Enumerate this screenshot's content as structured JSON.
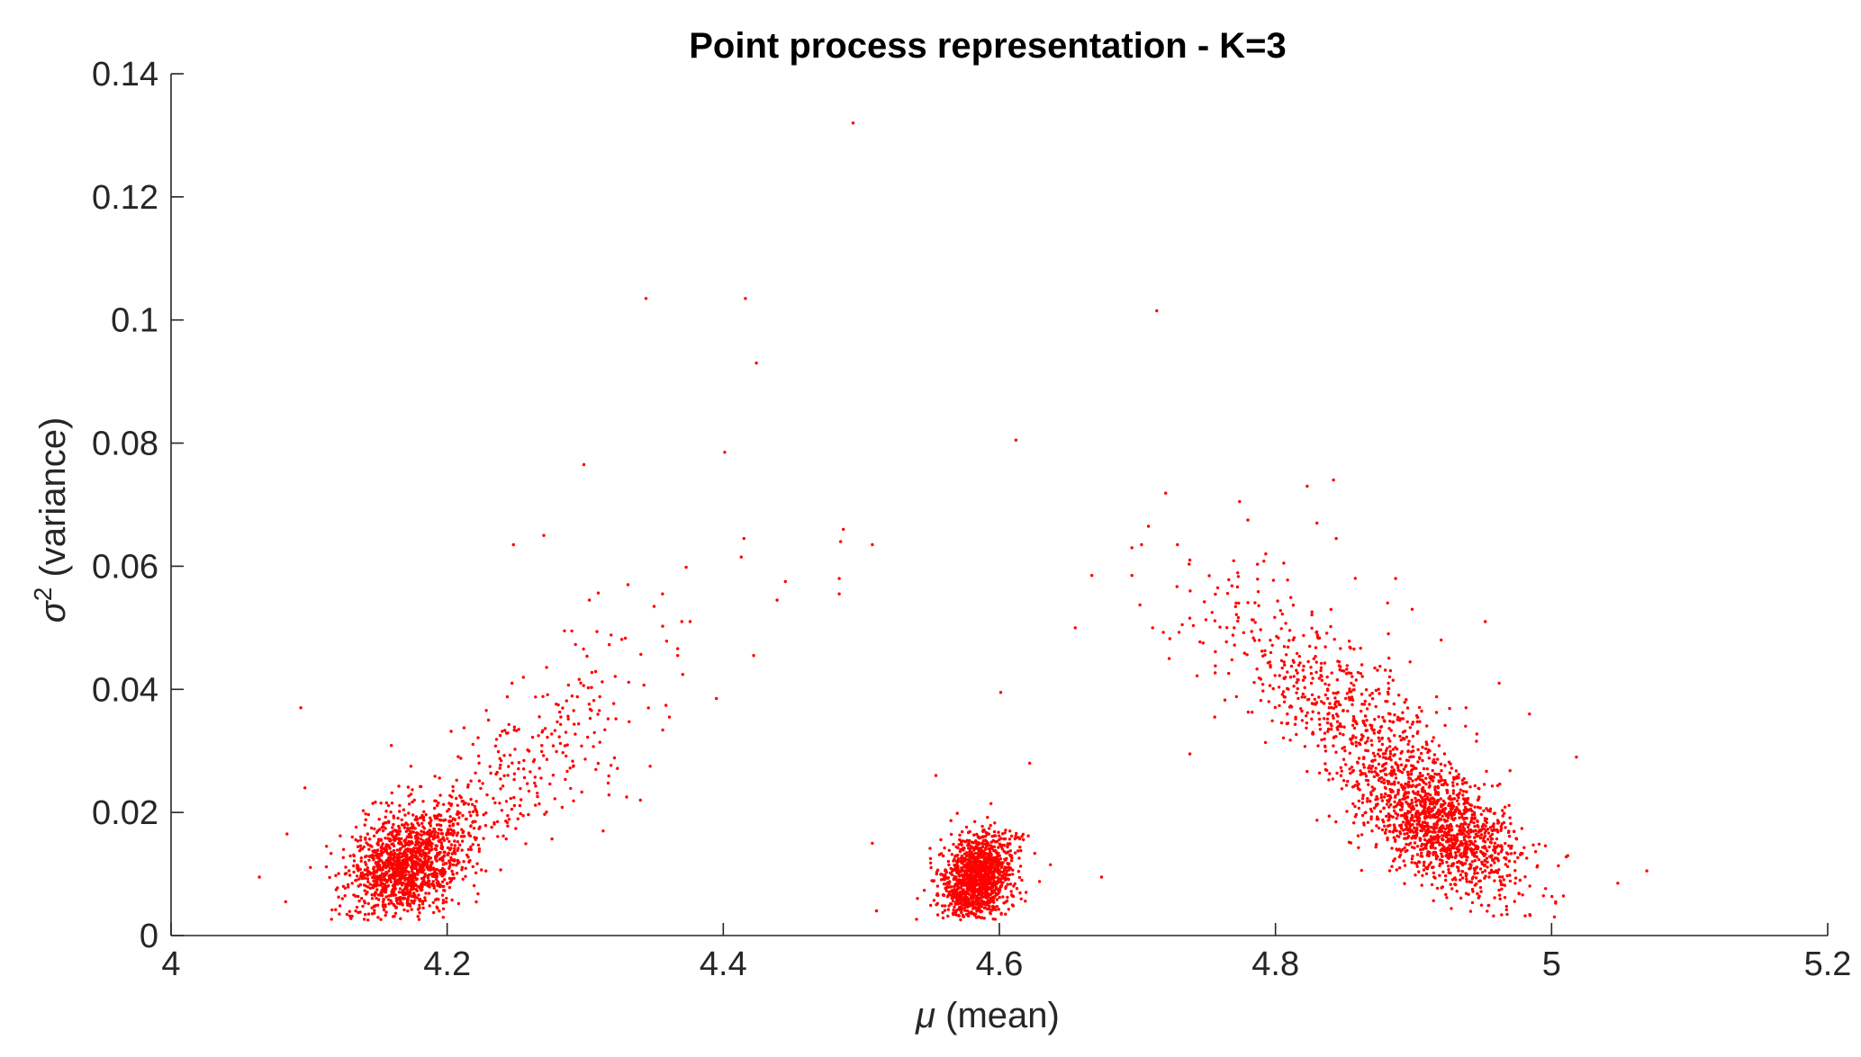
{
  "chart_data": {
    "type": "scatter",
    "title": "Point process representation - K=3",
    "xlabel_symbol": "μ",
    "xlabel_text": " (mean)",
    "ylabel_symbol": "σ",
    "ylabel_sup": "2",
    "ylabel_text": " (variance)",
    "xlim": [
      4,
      5.2
    ],
    "ylim": [
      0,
      0.14
    ],
    "xticks": [
      4,
      4.2,
      4.4,
      4.6,
      4.8,
      5,
      5.2
    ],
    "yticks": [
      0,
      0.02,
      0.04,
      0.06,
      0.08,
      0.1,
      0.12,
      0.14
    ],
    "xtick_labels": [
      "4",
      "4.2",
      "4.4",
      "4.6",
      "4.8",
      "5",
      "5.2"
    ],
    "ytick_labels": [
      "0",
      "0.02",
      "0.04",
      "0.06",
      "0.08",
      "0.1",
      "0.12",
      "0.14"
    ],
    "grid": false,
    "marker_color": "#ff0000",
    "axis_color": "#262626",
    "series": [
      {
        "clusters": [
          {
            "mean_x": 4.17,
            "mean_y": 0.0115,
            "sd_x": 0.022,
            "sd_y": 0.0045,
            "corr": 0.35,
            "n": 1300
          },
          {
            "mean_x": 4.23,
            "mean_y": 0.022,
            "sd_x": 0.045,
            "sd_y": 0.009,
            "corr": 0.75,
            "n": 260
          },
          {
            "mean_x": 4.3,
            "mean_y": 0.036,
            "sd_x": 0.03,
            "sd_y": 0.009,
            "corr": 0.5,
            "n": 80
          },
          {
            "mean_x": 4.585,
            "mean_y": 0.0095,
            "sd_x": 0.013,
            "sd_y": 0.0035,
            "corr": 0.3,
            "n": 1300
          },
          {
            "mean_x": 4.92,
            "mean_y": 0.0175,
            "sd_x": 0.03,
            "sd_y": 0.0055,
            "corr": -0.55,
            "n": 1300
          },
          {
            "mean_x": 4.86,
            "mean_y": 0.034,
            "sd_x": 0.04,
            "sd_y": 0.0085,
            "corr": -0.7,
            "n": 550
          },
          {
            "mean_x": 4.8,
            "mean_y": 0.048,
            "sd_x": 0.035,
            "sd_y": 0.007,
            "corr": -0.4,
            "n": 110
          }
        ],
        "points": [
          [
            4.494,
            0.132
          ],
          [
            4.344,
            0.1035
          ],
          [
            4.416,
            0.1035
          ],
          [
            4.714,
            0.1015
          ],
          [
            4.424,
            0.093
          ],
          [
            4.612,
            0.0805
          ],
          [
            4.401,
            0.0785
          ],
          [
            4.299,
            0.0765
          ],
          [
            4.842,
            0.074
          ],
          [
            4.823,
            0.073
          ],
          [
            4.774,
            0.0705
          ],
          [
            4.78,
            0.0675
          ],
          [
            4.83,
            0.067
          ],
          [
            4.708,
            0.0665
          ],
          [
            4.487,
            0.066
          ],
          [
            4.844,
            0.0645
          ],
          [
            4.27,
            0.065
          ],
          [
            4.415,
            0.0645
          ],
          [
            4.485,
            0.064
          ],
          [
            4.508,
            0.0635
          ],
          [
            4.248,
            0.0635
          ],
          [
            4.729,
            0.0635
          ],
          [
            4.696,
            0.063
          ],
          [
            4.703,
            0.0635
          ],
          [
            4.793,
            0.062
          ],
          [
            4.413,
            0.0615
          ],
          [
            4.738,
            0.061
          ],
          [
            4.806,
            0.0605
          ],
          [
            4.667,
            0.0585
          ],
          [
            4.696,
            0.0585
          ],
          [
            4.484,
            0.058
          ],
          [
            4.445,
            0.0575
          ],
          [
            4.887,
            0.058
          ],
          [
            4.331,
            0.057
          ],
          [
            4.356,
            0.0555
          ],
          [
            4.484,
            0.0555
          ],
          [
            4.303,
            0.0545
          ],
          [
            4.439,
            0.0545
          ],
          [
            4.376,
            0.051
          ],
          [
            4.37,
            0.051
          ],
          [
            4.655,
            0.05
          ],
          [
            4.285,
            0.0495
          ],
          [
            4.422,
            0.0455
          ],
          [
            4.367,
            0.0455
          ],
          [
            4.601,
            0.0395
          ],
          [
            4.395,
            0.0385
          ],
          [
            4.361,
            0.0355
          ],
          [
            4.347,
            0.0275
          ],
          [
            4.508,
            0.015
          ],
          [
            4.511,
            0.004
          ],
          [
            4.064,
            0.0095
          ],
          [
            4.094,
            0.037
          ],
          [
            4.084,
            0.0165
          ],
          [
            4.083,
            0.0055
          ],
          [
            4.097,
            0.024
          ],
          [
            4.313,
            0.017
          ],
          [
            4.33,
            0.0225
          ],
          [
            4.34,
            0.022
          ],
          [
            4.554,
            0.026
          ],
          [
            4.622,
            0.028
          ],
          [
            4.674,
            0.0095
          ],
          [
            4.637,
            0.0115
          ],
          [
            5.069,
            0.0105
          ],
          [
            5.048,
            0.0085
          ],
          [
            5.018,
            0.029
          ],
          [
            5.003,
            0.0055
          ],
          [
            4.952,
            0.051
          ],
          [
            4.938,
            0.037
          ],
          [
            4.962,
            0.041
          ],
          [
            4.984,
            0.036
          ],
          [
            4.899,
            0.053
          ],
          [
            4.92,
            0.048
          ],
          [
            4.738,
            0.0295
          ],
          [
            4.756,
            0.0355
          ],
          [
            4.711,
            0.05
          ],
          [
            4.723,
            0.045
          ]
        ]
      }
    ]
  }
}
